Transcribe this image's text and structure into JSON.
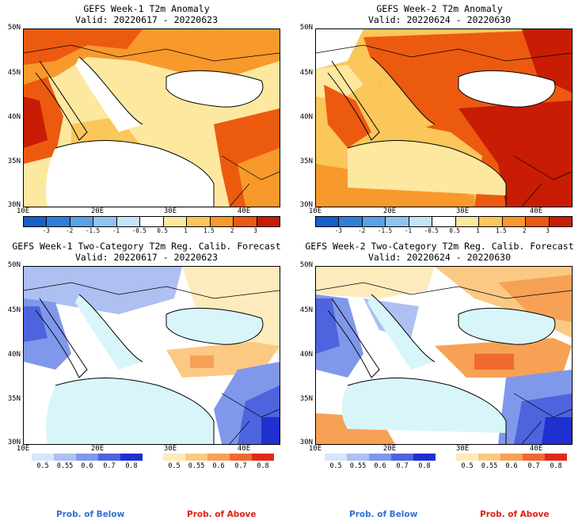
{
  "panels": [
    {
      "title": "GEFS Week-1 T2m Anomaly",
      "valid": "Valid: 20220617 - 20220623",
      "kind": "anomaly"
    },
    {
      "title": "GEFS Week-2 T2m Anomaly",
      "valid": "Valid: 20220624 - 20220630",
      "kind": "anomaly"
    },
    {
      "title": "GEFS Week-1 Two-Category T2m Reg. Calib. Forecast",
      "valid": "Valid: 20220617 - 20220623",
      "kind": "probability"
    },
    {
      "title": "GEFS Week-2 Two-Category T2m Reg. Calib. Forecast",
      "valid": "Valid: 20220624 - 20220630",
      "kind": "probability"
    }
  ],
  "axes": {
    "lat_labels": [
      "50N",
      "45N",
      "40N",
      "35N",
      "30N"
    ],
    "lon_labels": [
      "10E",
      "20E",
      "30E",
      "40E"
    ]
  },
  "anomaly_colorbar": {
    "ticks": [
      "-3",
      "-2",
      "-1.5",
      "-1",
      "-0.5",
      "0.5",
      "1",
      "1.5",
      "2",
      "3"
    ],
    "colors": [
      "#1560c8",
      "#2d7fd9",
      "#5aa1e6",
      "#92c3f0",
      "#c7e3f9",
      "#ffffff",
      "#fde8a0",
      "#fbc65a",
      "#f8992c",
      "#ec5a10",
      "#c81c04"
    ]
  },
  "probability_colorbars": {
    "below": {
      "ticks": [
        "0.5",
        "0.55",
        "0.6",
        "0.7",
        "0.8"
      ],
      "colors": [
        "#d9e5fb",
        "#aebff2",
        "#8098ea",
        "#4d64de",
        "#1f2fd0"
      ]
    },
    "above": {
      "ticks": [
        "0.5",
        "0.55",
        "0.6",
        "0.7",
        "0.8"
      ],
      "colors": [
        "#fdebbd",
        "#fbc984",
        "#f7a156",
        "#f06a30",
        "#e12a16"
      ]
    }
  },
  "legend": {
    "below_label": "Prob. of Below",
    "above_label": "Prob. of Above",
    "below_color": "#2f6fd6",
    "above_color": "#e0200f"
  },
  "colors": {
    "sea": "#d8f6fa",
    "land_neutral": "#ffffff"
  }
}
